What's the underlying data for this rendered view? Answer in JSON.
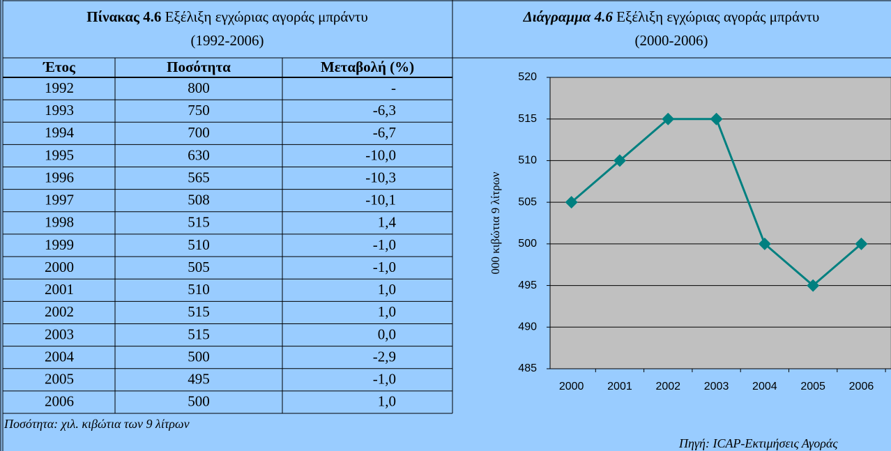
{
  "table": {
    "title": {
      "label": "Πίνακας 4.6",
      "text": "Εξέλιξη εγχώριας αγοράς μπράντυ",
      "period": "(1992-2006)"
    },
    "headers": [
      "Έτος",
      "Ποσότητα",
      "Μεταβολή (%)"
    ],
    "rows": [
      [
        "1992",
        "800",
        "-"
      ],
      [
        "1993",
        "750",
        "-6,3"
      ],
      [
        "1994",
        "700",
        "-6,7"
      ],
      [
        "1995",
        "630",
        "-10,0"
      ],
      [
        "1996",
        "565",
        "-10,3"
      ],
      [
        "1997",
        "508",
        "-10,1"
      ],
      [
        "1998",
        "515",
        "1,4"
      ],
      [
        "1999",
        "510",
        "-1,0"
      ],
      [
        "2000",
        "505",
        "-1,0"
      ],
      [
        "2001",
        "510",
        "1,0"
      ],
      [
        "2002",
        "515",
        "1,0"
      ],
      [
        "2003",
        "515",
        "0,0"
      ],
      [
        "2004",
        "500",
        "-2,9"
      ],
      [
        "2005",
        "495",
        "-1,0"
      ],
      [
        "2006",
        "500",
        "1,0"
      ]
    ]
  },
  "chart_data": {
    "type": "line",
    "title": {
      "label": "Διάγραμμα 4.6",
      "text": "Εξέλιξη εγχώριας αγοράς μπράντυ",
      "period": "(2000-2006)"
    },
    "y_label": "000 κιβώτια 9 λίτρων",
    "categories": [
      "2000",
      "2001",
      "2002",
      "2003",
      "2004",
      "2005",
      "2006"
    ],
    "values": [
      505,
      510,
      515,
      515,
      500,
      495,
      500
    ],
    "color": "#008080",
    "ylim": [
      485,
      520
    ],
    "yticks": [
      485,
      490,
      495,
      500,
      505,
      510,
      515,
      520
    ],
    "grid": true
  },
  "note": "Ποσότητα: χιλ. κιβώτια των 9 λίτρων",
  "source": "Πηγή: ICAP-Εκτιμήσεις Αγοράς"
}
